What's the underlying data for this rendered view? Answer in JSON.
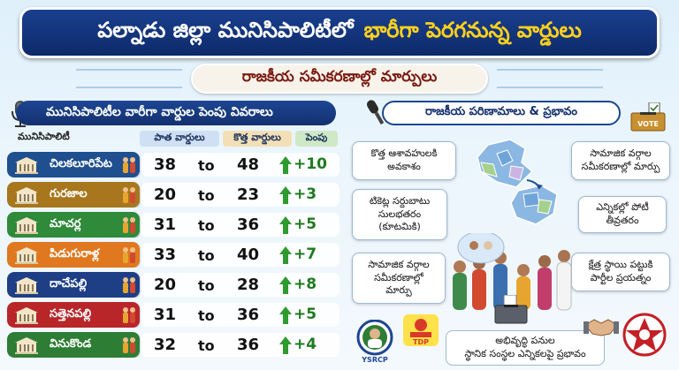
{
  "header": {
    "title_part1": "పల్నాడు జిల్లా మునిసిపాలిటీలో",
    "title_part2": "భారీగా పెరగనున్న వార్డులు",
    "subtitle": "రాజకీయ సమీకరణాల్లో మార్పులు"
  },
  "left_panel": {
    "heading": "మునిసిపాలిటీల వారీగా వార్డుల పెంపు వివరాలు",
    "col_municipality": "మునిసిపాలిటీ",
    "col_old": "పాత వార్డులు",
    "col_new": "కొత్త వార్డులు",
    "col_increase": "పెంపు",
    "to_word": "to",
    "rows": [
      {
        "name": "చిలకలూరిపేట",
        "old": "38",
        "new": "48",
        "increase": "+10",
        "color": "#1f4f8f"
      },
      {
        "name": "గురజాల",
        "old": "20",
        "new": "23",
        "increase": "+3",
        "color": "#a8761c"
      },
      {
        "name": "మాచర్ల",
        "old": "31",
        "new": "36",
        "increase": "+5",
        "color": "#2f8a3a"
      },
      {
        "name": "పిడుగురాళ్ల",
        "old": "33",
        "new": "40",
        "increase": "+7",
        "color": "#e0781f"
      },
      {
        "name": "దాచేపల్లి",
        "old": "20",
        "new": "28",
        "increase": "+8",
        "color": "#1e3f86"
      },
      {
        "name": "సత్తెనపల్లి",
        "old": "31",
        "new": "36",
        "increase": "+5",
        "color": "#b8262a"
      },
      {
        "name": "వినుకొండ",
        "old": "32",
        "new": "36",
        "increase": "+4",
        "color": "#2e7d35"
      }
    ]
  },
  "right_panel": {
    "heading": "రాజకీయ పరిణామాలు & ప్రభావం",
    "vote_label": "VOTE",
    "box_left_1": "కొత్త ఆశావహులకి\nఅవకాశం",
    "box_left_2": "టికెట్ల సర్దుబాటు\nసులభతరం\n(కూటమికి)",
    "box_left_3": "సామాజిక వర్గాల\nసమీకరణాల్లో\nమార్పు",
    "box_right_1": "సామాజిక వర్గాల\nసమీకరణాల్లో మార్పు",
    "box_right_2": "ఎన్నికల్లో పోటీ\nతీవ్రతరం",
    "box_right_3": "క్షేత్ర స్థాయి పట్టుకి\nపార్టీల ప్రయత్నం",
    "bottom_box": "అభివృద్ధి పనుల\nస్థానిక సంస్థల ఎన్నికలపై ప్రభావం",
    "logo_ysrcp": "YSRCP",
    "logo_tdp": "TDP"
  }
}
